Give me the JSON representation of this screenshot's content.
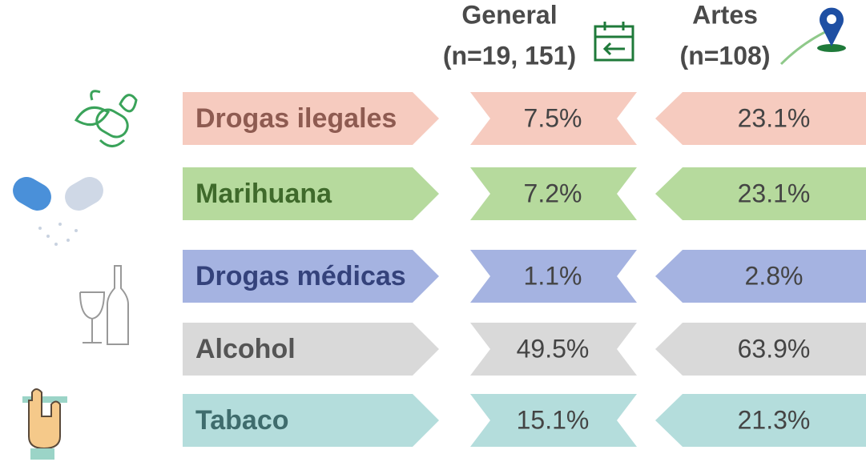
{
  "header": {
    "general": {
      "title": "General",
      "n": "(n=19, 151)"
    },
    "artes": {
      "title": "Artes",
      "n": "(n=108)"
    }
  },
  "table": {
    "rows": [
      {
        "label": "Drogas ilegales",
        "general": "7.5%",
        "artes": "23.1%",
        "color": "#f6cbbf",
        "text_color": "#8e5b51"
      },
      {
        "label": "Marihuana",
        "general": "7.2%",
        "artes": "23.1%",
        "color": "#b6da9d",
        "text_color": "#3f6a2b"
      },
      {
        "label": "Drogas médicas",
        "general": "1.1%",
        "artes": "2.8%",
        "color": "#a5b3e1",
        "text_color": "#34427b"
      },
      {
        "label": "Alcohol",
        "general": "49.5%",
        "artes": "63.9%",
        "color": "#d9d9d9",
        "text_color": "#555555"
      },
      {
        "label": "Tabaco",
        "general": "15.1%",
        "artes": "21.3%",
        "color": "#b4dddc",
        "text_color": "#3f6c6d"
      }
    ]
  }
}
